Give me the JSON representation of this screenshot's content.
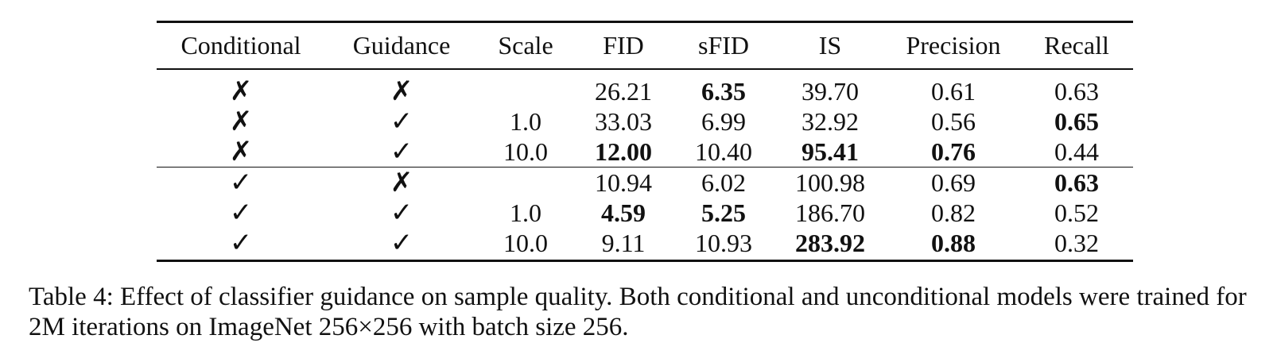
{
  "table": {
    "columns": [
      "Conditional",
      "Guidance",
      "Scale",
      "FID",
      "sFID",
      "IS",
      "Precision",
      "Recall"
    ],
    "groups": [
      [
        {
          "conditional": "✗",
          "guidance": "✗",
          "scale": "",
          "fid": "26.21",
          "sfid": "6.35",
          "is": "39.70",
          "precision": "0.61",
          "recall": "0.63",
          "bold": [
            "sfid"
          ]
        },
        {
          "conditional": "✗",
          "guidance": "✓",
          "scale": "1.0",
          "fid": "33.03",
          "sfid": "6.99",
          "is": "32.92",
          "precision": "0.56",
          "recall": "0.65",
          "bold": [
            "recall"
          ]
        },
        {
          "conditional": "✗",
          "guidance": "✓",
          "scale": "10.0",
          "fid": "12.00",
          "sfid": "10.40",
          "is": "95.41",
          "precision": "0.76",
          "recall": "0.44",
          "bold": [
            "fid",
            "is",
            "precision"
          ]
        }
      ],
      [
        {
          "conditional": "✓",
          "guidance": "✗",
          "scale": "",
          "fid": "10.94",
          "sfid": "6.02",
          "is": "100.98",
          "precision": "0.69",
          "recall": "0.63",
          "bold": [
            "recall"
          ]
        },
        {
          "conditional": "✓",
          "guidance": "✓",
          "scale": "1.0",
          "fid": "4.59",
          "sfid": "5.25",
          "is": "186.70",
          "precision": "0.82",
          "recall": "0.52",
          "bold": [
            "fid",
            "sfid"
          ]
        },
        {
          "conditional": "✓",
          "guidance": "✓",
          "scale": "10.0",
          "fid": "9.11",
          "sfid": "10.93",
          "is": "283.92",
          "precision": "0.88",
          "recall": "0.32",
          "bold": [
            "is",
            "precision"
          ]
        }
      ]
    ]
  },
  "caption": "Table 4: Effect of classifier guidance on sample quality. Both conditional and unconditional models were trained for 2M iterations on ImageNet 256×256 with batch size 256."
}
